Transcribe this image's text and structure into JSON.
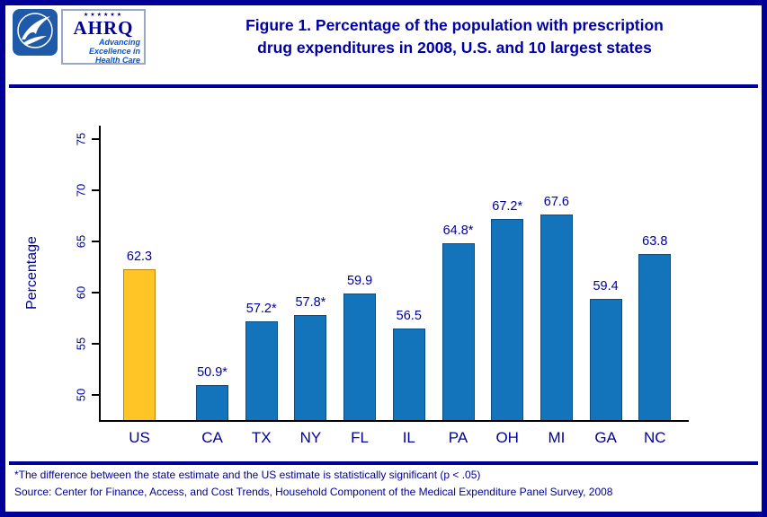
{
  "header": {
    "title_line1": "Figure 1.  Percentage of the population with prescription",
    "title_line2": "drug expenditures in 2008, U.S. and 10 largest states",
    "ahrq": {
      "stars": "★★★★★★",
      "word": "AHRQ",
      "tagline1": "Advancing",
      "tagline2": "Excellence in",
      "tagline3": "Health Care"
    }
  },
  "chart_data": {
    "type": "bar",
    "title": "Figure 1. Percentage of the population with prescription drug expenditures in 2008, U.S. and 10 largest states",
    "categories": [
      "US",
      "CA",
      "TX",
      "NY",
      "FL",
      "IL",
      "PA",
      "OH",
      "MI",
      "GA",
      "NC"
    ],
    "values": [
      62.3,
      50.9,
      57.2,
      57.8,
      59.9,
      56.5,
      64.8,
      67.2,
      67.6,
      59.4,
      63.8
    ],
    "labels": [
      "62.3",
      "50.9*",
      "57.2*",
      "57.8*",
      "59.9",
      "56.5",
      "64.8*",
      "67.2*",
      "67.6",
      "59.4",
      "63.8"
    ],
    "ylabel": "Percentage",
    "yticks": [
      50,
      55,
      60,
      65,
      70,
      75
    ],
    "ylim": [
      47.5,
      76.5
    ],
    "grid": false,
    "legend": "none",
    "highlight_index": 0,
    "bar_colors": {
      "default": "#1374BC",
      "highlight": "#FFC527"
    },
    "bar_border_colors": {
      "default": "#0A4E86",
      "highlight": "#B8860B"
    }
  },
  "footnotes": {
    "line1": "*The difference between the state estimate and the US estimate is statistically significant (p < .05)",
    "line2": "Source: Center for Finance, Access, and Cost Trends, Household Component of the Medical Expenditure Panel Survey, 2008"
  }
}
